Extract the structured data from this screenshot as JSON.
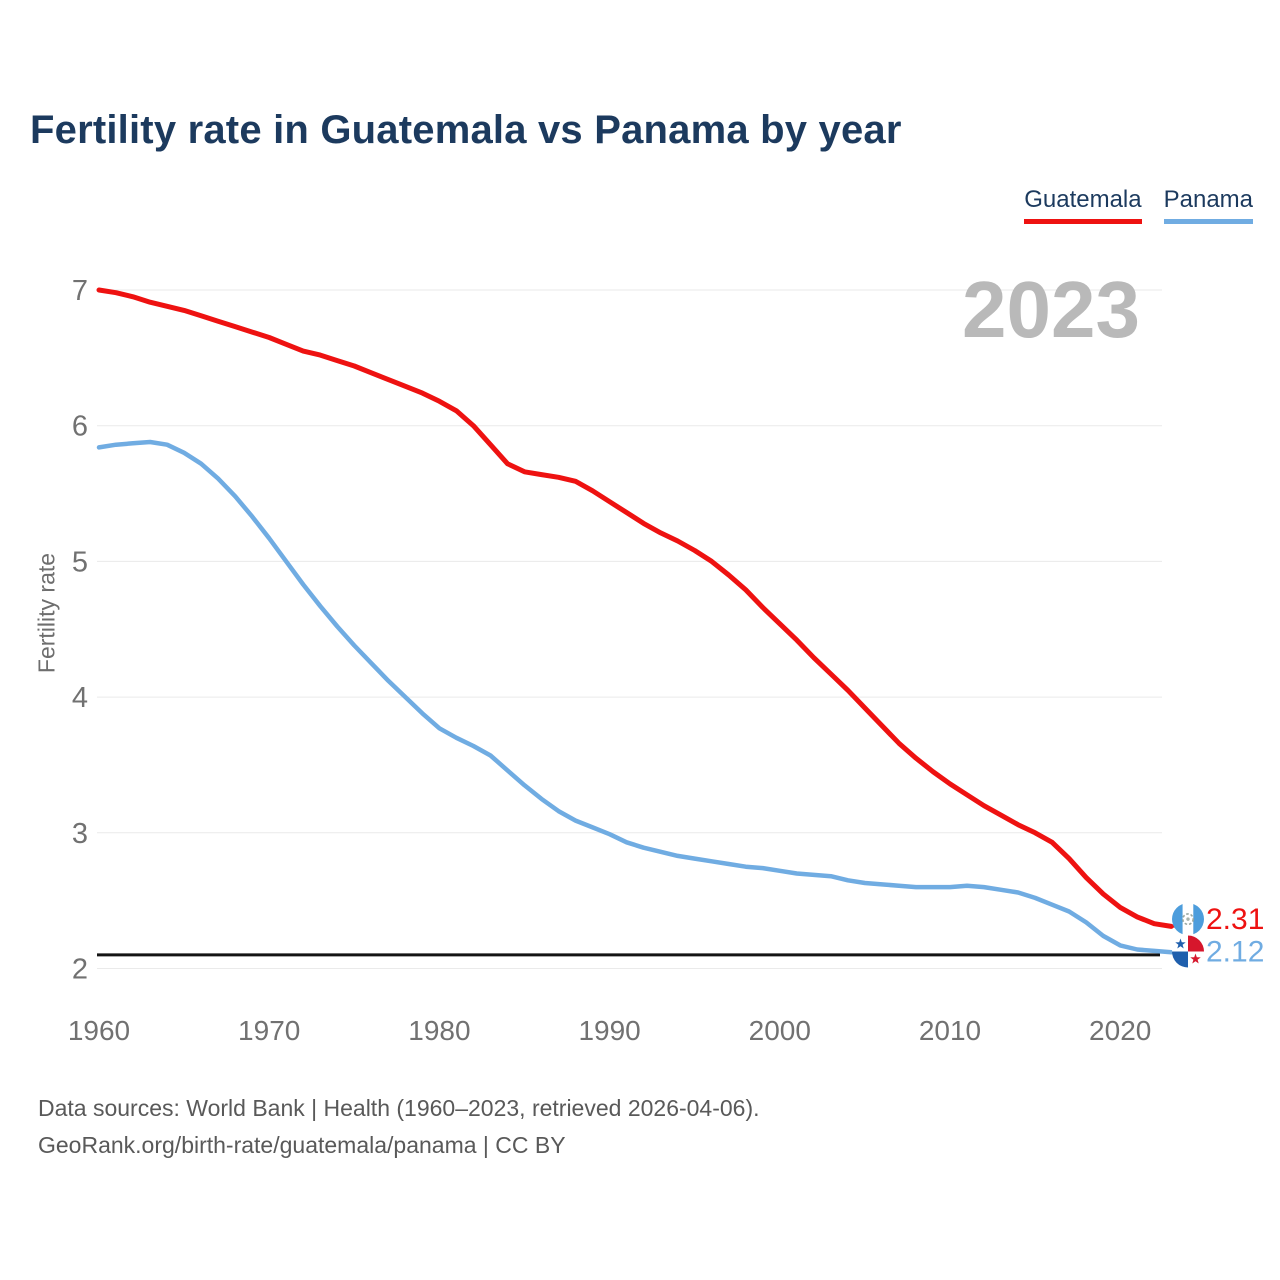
{
  "page": {
    "background": "#ffffff"
  },
  "header": {
    "title": "Fertility rate in Guatemala vs Panama by year"
  },
  "legend": [
    {
      "label": "Guatemala",
      "color": "#EE1211"
    },
    {
      "label": "Panama",
      "color": "#70ACE2"
    }
  ],
  "watermark": "2023",
  "footer": {
    "line1": "Data sources: World Bank | Health (1960–2023, retrieved 2026-04-06).",
    "line2": "GeoRank.org/birth-rate/guatemala/panama | CC BY"
  },
  "chart_data": {
    "type": "line",
    "title": "Fertility rate in Guatemala vs Panama by year",
    "xlabel": "",
    "ylabel": "Fertility rate",
    "xlim": [
      1960,
      2023
    ],
    "ylim": [
      2,
      7
    ],
    "x_ticks": [
      1960,
      1970,
      1980,
      1990,
      2000,
      2010,
      2020
    ],
    "y_ticks": [
      2,
      3,
      4,
      5,
      6,
      7
    ],
    "grid": "horizontal",
    "gridline_color": "#EAEAEA",
    "reference_line": {
      "value": 2.1,
      "color": "#141414",
      "meaning": "replacement level"
    },
    "x": [
      1960,
      1961,
      1962,
      1963,
      1964,
      1965,
      1966,
      1967,
      1968,
      1969,
      1970,
      1971,
      1972,
      1973,
      1974,
      1975,
      1976,
      1977,
      1978,
      1979,
      1980,
      1981,
      1982,
      1983,
      1984,
      1985,
      1986,
      1987,
      1988,
      1989,
      1990,
      1991,
      1992,
      1993,
      1994,
      1995,
      1996,
      1997,
      1998,
      1999,
      2000,
      2001,
      2002,
      2003,
      2004,
      2005,
      2006,
      2007,
      2008,
      2009,
      2010,
      2011,
      2012,
      2013,
      2014,
      2015,
      2016,
      2017,
      2018,
      2019,
      2020,
      2021,
      2022,
      2023
    ],
    "series": [
      {
        "name": "Guatemala",
        "color": "#EE1211",
        "end_label": "2.31",
        "flag": "guatemala-flag",
        "values": [
          7.0,
          6.98,
          6.95,
          6.91,
          6.88,
          6.85,
          6.81,
          6.77,
          6.73,
          6.69,
          6.65,
          6.6,
          6.55,
          6.52,
          6.48,
          6.44,
          6.39,
          6.34,
          6.29,
          6.24,
          6.18,
          6.11,
          6.0,
          5.86,
          5.72,
          5.66,
          5.64,
          5.62,
          5.59,
          5.52,
          5.44,
          5.36,
          5.28,
          5.21,
          5.15,
          5.08,
          5.0,
          4.9,
          4.79,
          4.66,
          4.54,
          4.42,
          4.29,
          4.17,
          4.05,
          3.92,
          3.79,
          3.66,
          3.55,
          3.45,
          3.36,
          3.28,
          3.2,
          3.13,
          3.06,
          3.0,
          2.93,
          2.81,
          2.67,
          2.55,
          2.45,
          2.38,
          2.33,
          2.31
        ]
      },
      {
        "name": "Panama",
        "color": "#70ACE2",
        "end_label": "2.12",
        "flag": "panama-flag",
        "values": [
          5.84,
          5.86,
          5.87,
          5.88,
          5.86,
          5.8,
          5.72,
          5.61,
          5.48,
          5.33,
          5.17,
          5.0,
          4.83,
          4.67,
          4.52,
          4.38,
          4.25,
          4.12,
          4.0,
          3.88,
          3.77,
          3.7,
          3.64,
          3.57,
          3.46,
          3.35,
          3.25,
          3.16,
          3.09,
          3.04,
          2.99,
          2.93,
          2.89,
          2.86,
          2.83,
          2.81,
          2.79,
          2.77,
          2.75,
          2.74,
          2.72,
          2.7,
          2.69,
          2.68,
          2.65,
          2.63,
          2.62,
          2.61,
          2.6,
          2.6,
          2.6,
          2.61,
          2.6,
          2.58,
          2.56,
          2.52,
          2.47,
          2.42,
          2.34,
          2.24,
          2.17,
          2.14,
          2.13,
          2.12
        ]
      }
    ],
    "legend_position": "top-right"
  }
}
